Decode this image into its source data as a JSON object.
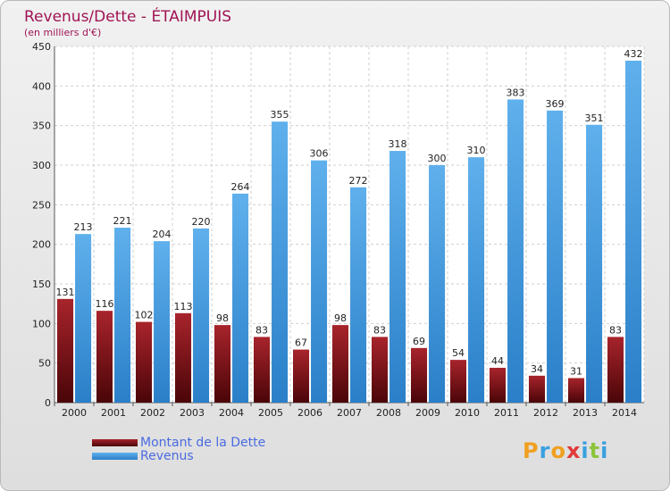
{
  "title": "Revenus/Dette - ÉTAIMPUIS",
  "subtitle": "(en milliers d'€)",
  "logo": [
    "P",
    "r",
    "o",
    "x",
    "i",
    "t",
    "i"
  ],
  "chart_data": {
    "type": "bar",
    "categories": [
      "2000",
      "2001",
      "2002",
      "2003",
      "2004",
      "2005",
      "2006",
      "2007",
      "2008",
      "2009",
      "2010",
      "2011",
      "2012",
      "2013",
      "2014"
    ],
    "series": [
      {
        "name": "Montant de la Dette",
        "values": [
          131,
          116,
          102,
          113,
          98,
          83,
          67,
          98,
          83,
          69,
          54,
          44,
          34,
          31,
          83
        ],
        "labels": [
          "131",
          "116",
          "102",
          "113",
          "98",
          "83",
          "67",
          "98",
          "83",
          "69",
          "54",
          "44",
          "34",
          "31",
          "83"
        ],
        "color": "#7a0f15"
      },
      {
        "name": "Revenus",
        "values": [
          213,
          221,
          204,
          220,
          264,
          355,
          306,
          272,
          318,
          300,
          310,
          383,
          369,
          351,
          432
        ],
        "labels": [
          "213",
          "221",
          "204",
          "220",
          "264",
          "355",
          "306",
          "272",
          "318",
          "300",
          "310",
          "383",
          "369",
          "351",
          "432"
        ],
        "color": "#3a93dd"
      }
    ],
    "ylim": [
      0,
      450
    ],
    "yticks": [
      0,
      50,
      100,
      150,
      200,
      250,
      300,
      350,
      400,
      450
    ],
    "grid": true,
    "legend_position": "bottom-left"
  }
}
